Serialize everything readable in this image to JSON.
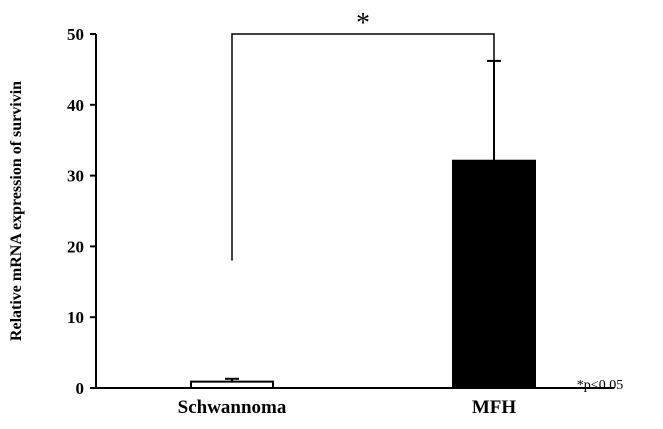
{
  "chart_data": {
    "type": "bar",
    "categories": [
      "Schwannoma",
      "MFH"
    ],
    "values": [
      0.9,
      32.1
    ],
    "error_plus": [
      0.4,
      14.1
    ],
    "bar_fills": [
      "#ffffff",
      "#000000"
    ],
    "ylabel": "Relative mRNA expression of survivin",
    "ylim": [
      0,
      50
    ],
    "yticks": [
      0,
      10,
      20,
      30,
      40,
      50
    ],
    "significance": {
      "marker": "*",
      "between": [
        "Schwannoma",
        "MFH"
      ],
      "bracket_left_bottom": 18
    },
    "footnote": "*p<0.05",
    "grid": false
  }
}
